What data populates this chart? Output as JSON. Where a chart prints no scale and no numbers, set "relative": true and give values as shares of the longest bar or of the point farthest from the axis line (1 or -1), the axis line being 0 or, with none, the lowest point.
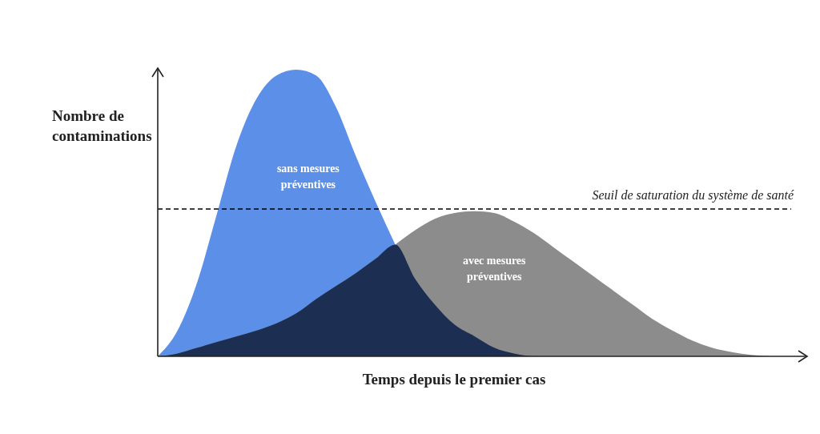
{
  "chart_data": {
    "type": "area",
    "relative": true,
    "xlabel": "Temps depuis le premier cas",
    "ylabel": "Nombre de contaminations",
    "categories": [
      null,
      null,
      null,
      null,
      null,
      null,
      null,
      null,
      null,
      null,
      null,
      null,
      null,
      null,
      null,
      null,
      null,
      null,
      null,
      null,
      null,
      null,
      null,
      null,
      null,
      null,
      null,
      null,
      null,
      null,
      null,
      null,
      null
    ],
    "series": [
      {
        "name": "sans mesures préventives",
        "color": "#5b8fe8",
        "values": [
          0,
          0.09,
          0.26,
          0.5,
          0.74,
          0.9,
          0.98,
          1,
          0.98,
          0.87,
          0.7,
          0.54,
          0.39,
          null,
          null,
          null,
          null,
          null,
          null,
          null,
          null,
          null,
          null,
          null,
          null,
          null,
          null,
          null,
          null,
          null,
          null,
          null,
          null
        ]
      },
      {
        "name": "avec mesures préventives",
        "color": "#8c8c8c",
        "values": [
          0,
          0.01,
          0.03,
          0.05,
          0.07,
          0.09,
          0.115,
          0.15,
          0.2,
          0.245,
          0.29,
          0.34,
          0.39,
          0.44,
          0.48,
          0.5,
          0.506,
          0.5,
          0.47,
          0.43,
          0.38,
          0.33,
          0.28,
          0.23,
          0.18,
          0.13,
          0.09,
          0.055,
          0.03,
          0.015,
          0.005,
          0,
          null
        ]
      },
      {
        "color": "#1c2f52",
        "values": [
          0,
          0.01,
          0.03,
          0.05,
          0.07,
          0.09,
          0.115,
          0.15,
          0.2,
          0.245,
          0.29,
          0.34,
          0.39,
          0.27,
          0.18,
          0.11,
          0.07,
          0.03,
          0.01,
          0,
          null,
          null,
          null,
          null,
          null,
          null,
          null,
          null,
          null,
          null,
          null,
          null,
          null
        ]
      }
    ],
    "ref_lines": [
      {
        "axis": "y",
        "value": 0.514,
        "label": "Seuil de saturation du système de santé",
        "line_style": "dashed",
        "color": "#000000"
      }
    ],
    "grid": false,
    "legend": false
  }
}
